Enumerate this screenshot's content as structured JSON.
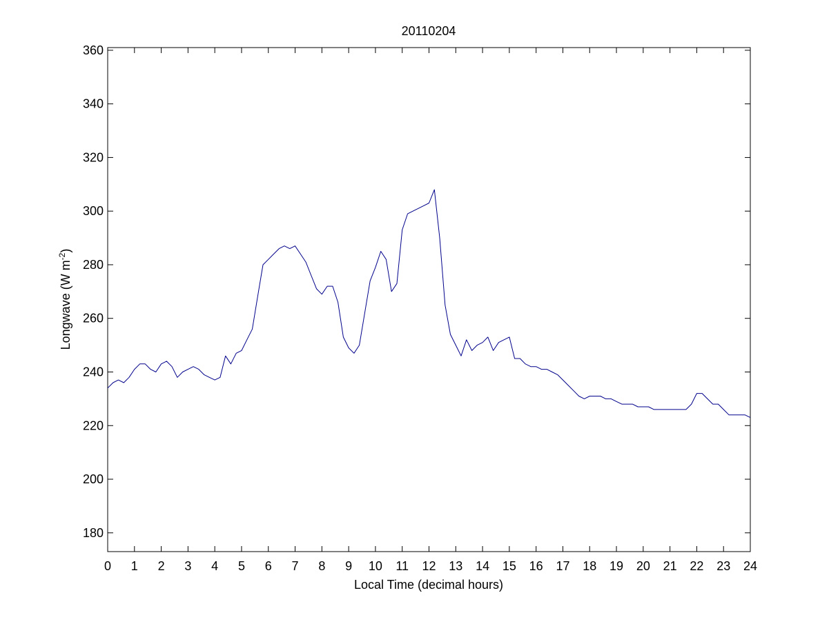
{
  "chart_data": {
    "type": "line",
    "title": "20110204",
    "xlabel": "Local Time (decimal hours)",
    "ylabel_main": "Longwave (W m",
    "ylabel_sup": "-2",
    "ylabel_close": ")",
    "xlim": [
      0,
      24
    ],
    "ylim": [
      173,
      361
    ],
    "x_ticks": [
      0,
      1,
      2,
      3,
      4,
      5,
      6,
      7,
      8,
      9,
      10,
      11,
      12,
      13,
      14,
      15,
      16,
      17,
      18,
      19,
      20,
      21,
      22,
      23,
      24
    ],
    "x_tick_labels": [
      "0",
      "1",
      "2",
      "3",
      "4",
      "5",
      "6",
      "7",
      "8",
      "9",
      "10",
      "11",
      "12",
      "13",
      "14",
      "15",
      "16",
      "17",
      "18",
      "19",
      "20",
      "21",
      "22",
      "23",
      "24"
    ],
    "y_ticks": [
      180,
      200,
      220,
      240,
      260,
      280,
      300,
      320,
      340,
      360
    ],
    "y_tick_labels": [
      "180",
      "200",
      "220",
      "240",
      "260",
      "280",
      "300",
      "320",
      "340",
      "360"
    ],
    "grid": false,
    "series": [
      {
        "color": "#00008b",
        "x": [
          0,
          0.2,
          0.4,
          0.6,
          0.8,
          1.0,
          1.2,
          1.4,
          1.6,
          1.8,
          2.0,
          2.2,
          2.4,
          2.6,
          2.8,
          3.0,
          3.2,
          3.4,
          3.6,
          3.8,
          4.0,
          4.2,
          4.4,
          4.6,
          4.8,
          5.0,
          5.2,
          5.4,
          5.6,
          5.8,
          6.0,
          6.2,
          6.4,
          6.6,
          6.8,
          7.0,
          7.2,
          7.4,
          7.6,
          7.8,
          8.0,
          8.2,
          8.4,
          8.6,
          8.8,
          9.0,
          9.2,
          9.4,
          9.6,
          9.8,
          10.0,
          10.2,
          10.4,
          10.6,
          10.8,
          11.0,
          11.2,
          11.4,
          11.6,
          11.8,
          12.0,
          12.2,
          12.4,
          12.6,
          12.8,
          13.0,
          13.2,
          13.4,
          13.6,
          13.8,
          14.0,
          14.2,
          14.4,
          14.6,
          14.8,
          15.0,
          15.2,
          15.4,
          15.6,
          15.8,
          16.0,
          16.2,
          16.4,
          16.6,
          16.8,
          17.0,
          17.2,
          17.4,
          17.6,
          17.8,
          18.0,
          18.2,
          18.4,
          18.6,
          18.8,
          19.0,
          19.2,
          19.4,
          19.6,
          19.8,
          20.0,
          20.2,
          20.4,
          20.6,
          20.8,
          21.0,
          21.2,
          21.4,
          21.6,
          21.8,
          22.0,
          22.2,
          22.4,
          22.6,
          22.8,
          23.0,
          23.2,
          23.4,
          23.6,
          23.8,
          24.0
        ],
        "y": [
          234,
          236,
          237,
          236,
          238,
          241,
          243,
          243,
          241,
          240,
          243,
          244,
          242,
          238,
          240,
          241,
          242,
          241,
          239,
          238,
          237,
          238,
          246,
          243,
          247,
          248,
          252,
          256,
          268,
          280,
          282,
          284,
          286,
          287,
          286,
          287,
          284,
          281,
          276,
          271,
          269,
          272,
          272,
          266,
          253,
          249,
          247,
          250,
          262,
          274,
          279,
          285,
          282,
          270,
          273,
          293,
          299,
          300,
          301,
          302,
          303,
          308,
          290,
          265,
          254,
          250,
          246,
          252,
          248,
          250,
          251,
          253,
          248,
          251,
          252,
          253,
          245,
          245,
          243,
          242,
          242,
          241,
          241,
          240,
          239,
          237,
          235,
          233,
          231,
          230,
          231,
          231,
          231,
          230,
          230,
          229,
          228,
          228,
          228,
          227,
          227,
          227,
          226,
          226,
          226,
          226,
          226,
          226,
          226,
          228,
          232,
          232,
          230,
          228,
          228,
          226,
          224,
          224,
          224,
          224,
          223
        ]
      }
    ]
  }
}
